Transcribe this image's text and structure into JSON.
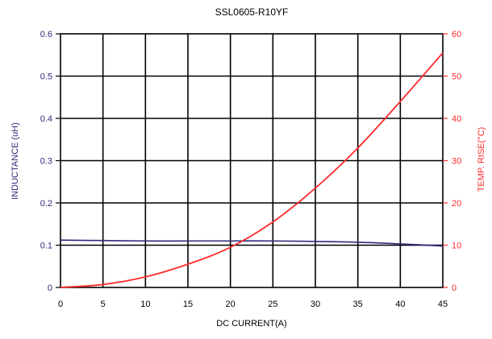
{
  "chart_data": {
    "type": "line",
    "title": "SSL0605-R10YF",
    "xlabel": "DC CURRENT(A)",
    "ylabel_left": "INDUCTANCE (uH)",
    "ylabel_right": "TEMP. RISE(°C)",
    "xlim": [
      0,
      45
    ],
    "ylim_left": [
      0,
      0.6
    ],
    "ylim_right": [
      0,
      60
    ],
    "x_ticks": [
      "0",
      "5",
      "10",
      "15",
      "20",
      "25",
      "30",
      "35",
      "40",
      "45"
    ],
    "y_left_ticks": [
      "0",
      "0.1",
      "0.2",
      "0.3",
      "0.4",
      "0.5",
      "0.6"
    ],
    "y_right_ticks": [
      "0",
      "10",
      "20",
      "30",
      "40",
      "50",
      "60"
    ],
    "grid": true,
    "series": [
      {
        "axis": "left",
        "color": "#2e2a7a",
        "x": [
          0,
          5,
          10,
          15,
          20,
          25,
          30,
          35,
          40,
          45
        ],
        "y": [
          0.112,
          0.111,
          0.11,
          0.11,
          0.11,
          0.11,
          0.109,
          0.107,
          0.103,
          0.098
        ]
      },
      {
        "axis": "right",
        "color": "#ff2a2a",
        "x": [
          0,
          5,
          10,
          15,
          20,
          25,
          30,
          35,
          40,
          45
        ],
        "y": [
          0,
          0.7,
          2.5,
          5.5,
          9.5,
          15.5,
          23.5,
          33,
          44,
          55.5
        ]
      }
    ]
  }
}
